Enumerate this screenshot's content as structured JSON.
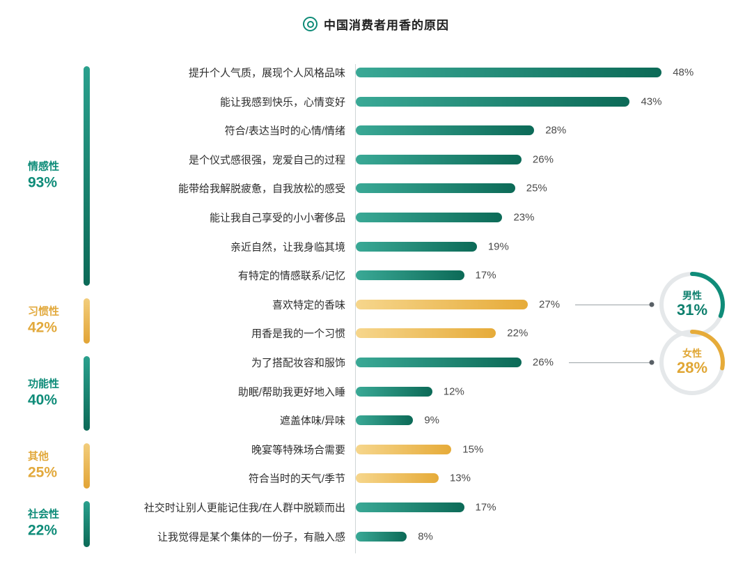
{
  "chart_data": {
    "type": "bar",
    "orientation": "horizontal",
    "title": "中国消费者用香的原因",
    "unit": "%",
    "xlim": [
      0,
      50
    ],
    "legend": "none",
    "grid": false,
    "colors": {
      "teal_light": "#3aa996",
      "teal_dark": "#0c6a57",
      "gold_light": "#f6d68c",
      "gold_dark": "#e6ab39",
      "teal_text": "#0f8c79",
      "gold_text": "#e2a93c",
      "value_text": "#4a4a4a",
      "ring_gray": "#e5e8ea"
    },
    "groups": [
      {
        "name": "情感性",
        "display": "93%",
        "value": 93,
        "color": "teal",
        "rows": [
          {
            "label": "提升个人气质，展现个人风格品味",
            "value": 48
          },
          {
            "label": "能让我感到快乐，心情变好",
            "value": 43
          },
          {
            "label": "符合/表达当时的心情/情绪",
            "value": 28
          },
          {
            "label": "是个仪式感很强，宠爱自己的过程",
            "value": 26
          },
          {
            "label": "能带给我解脱疲惫，自我放松的感受",
            "value": 25
          },
          {
            "label": "能让我自己享受的小小奢侈品",
            "value": 23
          },
          {
            "label": "亲近自然，让我身临其境",
            "value": 19
          },
          {
            "label": "有特定的情感联系/记忆",
            "value": 17
          }
        ]
      },
      {
        "name": "习惯性",
        "display": "42%",
        "value": 42,
        "color": "gold",
        "rows": [
          {
            "label": "喜欢特定的香味",
            "value": 27
          },
          {
            "label": "用香是我的一个习惯",
            "value": 22
          }
        ]
      },
      {
        "name": "功能性",
        "display": "40%",
        "value": 40,
        "color": "teal",
        "rows": [
          {
            "label": "为了搭配妆容和服饰",
            "value": 26
          },
          {
            "label": "助眠/帮助我更好地入睡",
            "value": 12
          },
          {
            "label": "遮盖体味/异味",
            "value": 9
          }
        ]
      },
      {
        "name": "其他",
        "display": "25%",
        "value": 25,
        "color": "gold",
        "rows": [
          {
            "label": "晚宴等特殊场合需要",
            "value": 15
          },
          {
            "label": "符合当时的天气/季节",
            "value": 13
          }
        ]
      },
      {
        "name": "社会性",
        "display": "22%",
        "value": 22,
        "color": "teal",
        "rows": [
          {
            "label": "社交时让别人更能记住我/在人群中脱颖而出",
            "value": 17
          },
          {
            "label": "让我觉得是某个集体的一份子，有融入感",
            "value": 8
          }
        ]
      }
    ],
    "badges": [
      {
        "name": "男性",
        "display": "31%",
        "value": 31,
        "color": "teal",
        "row": 8,
        "linked_label": "喜欢特定的香味"
      },
      {
        "name": "女性",
        "display": "28%",
        "value": 28,
        "color": "gold",
        "row": 10,
        "linked_label": "为了搭配妆容和服饰"
      }
    ]
  }
}
